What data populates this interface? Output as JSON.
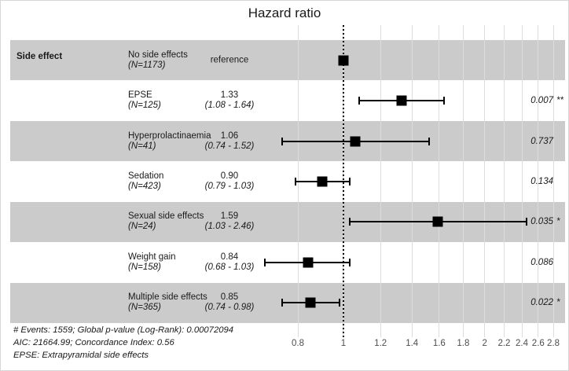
{
  "column_header": "Side effect",
  "colors": {
    "band": "#cbcbcb",
    "gridline": "#dcdcdc",
    "marker": "#000000",
    "axis_text": "#4d4d4d",
    "text": "#1a1a1a"
  },
  "chart_data": {
    "type": "forest",
    "title": "Hazard ratio",
    "x_scale": "log",
    "xlabel": "",
    "x_ticks": [
      0.8,
      1,
      1.2,
      1.4,
      1.6,
      1.8,
      2,
      2.2,
      2.4,
      2.6,
      2.8
    ],
    "x_range": [
      0.68,
      2.8
    ],
    "reference_line": 1,
    "legend_position": "none",
    "rows": [
      {
        "label": "No side effects",
        "n_label": "(N=1173)",
        "estimate_text": "reference",
        "ci_text": "",
        "hr": 1,
        "ci_low": null,
        "ci_high": null,
        "p_value": "",
        "significance": ""
      },
      {
        "label": "EPSE",
        "n_label": "(N=125)",
        "estimate_text": "1.33",
        "ci_text": "(1.08 - 1.64)",
        "hr": 1.33,
        "ci_low": 1.08,
        "ci_high": 1.64,
        "p_value": "0.007",
        "significance": "**"
      },
      {
        "label": "Hyperprolactinaemia",
        "n_label": "(N=41)",
        "estimate_text": "1.06",
        "ci_text": "(0.74 - 1.52)",
        "hr": 1.06,
        "ci_low": 0.74,
        "ci_high": 1.52,
        "p_value": "0.737",
        "significance": ""
      },
      {
        "label": "Sedation",
        "n_label": "(N=423)",
        "estimate_text": "0.90",
        "ci_text": "(0.79 - 1.03)",
        "hr": 0.9,
        "ci_low": 0.79,
        "ci_high": 1.03,
        "p_value": "0.134",
        "significance": ""
      },
      {
        "label": "Sexual side effects",
        "n_label": "(N=24)",
        "estimate_text": "1.59",
        "ci_text": "(1.03 - 2.46)",
        "hr": 1.59,
        "ci_low": 1.03,
        "ci_high": 2.46,
        "p_value": "0.035",
        "significance": "*"
      },
      {
        "label": "Weight gain",
        "n_label": "(N=158)",
        "estimate_text": "0.84",
        "ci_text": "(0.68 - 1.03)",
        "hr": 0.84,
        "ci_low": 0.68,
        "ci_high": 1.03,
        "p_value": "0.086",
        "significance": ""
      },
      {
        "label": "Multiple side effects",
        "n_label": "(N=365)",
        "estimate_text": "0.85",
        "ci_text": "(0.74 - 0.98)",
        "hr": 0.85,
        "ci_low": 0.74,
        "ci_high": 0.98,
        "p_value": "0.022",
        "significance": "*"
      }
    ],
    "footnotes": [
      "# Events: 1559; Global p-value (Log-Rank): 0.00072094",
      "AIC: 21664.99; Concordance Index: 0.56",
      "EPSE: Extrapyramidal side effects"
    ]
  }
}
